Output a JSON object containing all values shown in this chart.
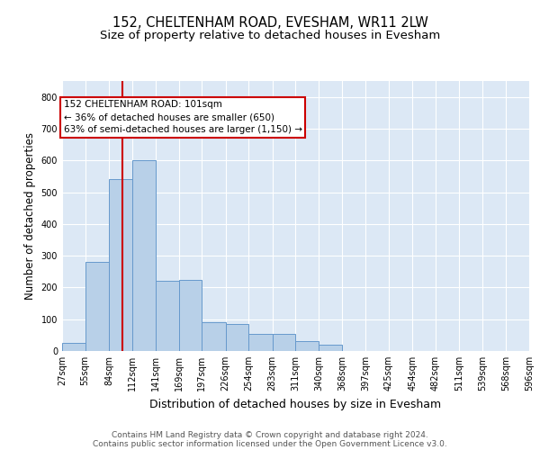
{
  "title": "152, CHELTENHAM ROAD, EVESHAM, WR11 2LW",
  "subtitle": "Size of property relative to detached houses in Evesham",
  "xlabel": "Distribution of detached houses by size in Evesham",
  "ylabel": "Number of detached properties",
  "footer_line1": "Contains HM Land Registry data © Crown copyright and database right 2024.",
  "footer_line2": "Contains public sector information licensed under the Open Government Licence v3.0.",
  "bar_color": "#b8d0e8",
  "bar_edge_color": "#6699cc",
  "background_color": "#dce8f5",
  "grid_color": "#ffffff",
  "vline_color": "#cc0000",
  "vline_x": 101,
  "annotation_text": "152 CHELTENHAM ROAD: 101sqm\n← 36% of detached houses are smaller (650)\n63% of semi-detached houses are larger (1,150) →",
  "ylim": [
    0,
    850
  ],
  "yticks": [
    0,
    100,
    200,
    300,
    400,
    500,
    600,
    700,
    800
  ],
  "bins": [
    27,
    55,
    84,
    112,
    141,
    169,
    197,
    226,
    254,
    283,
    311,
    340,
    368,
    397,
    425,
    454,
    482,
    511,
    539,
    568,
    596
  ],
  "counts": [
    25,
    280,
    540,
    600,
    220,
    225,
    90,
    85,
    55,
    55,
    30,
    20,
    0,
    0,
    0,
    0,
    0,
    0,
    0,
    0
  ],
  "title_fontsize": 10.5,
  "subtitle_fontsize": 9.5,
  "ylabel_fontsize": 8.5,
  "xlabel_fontsize": 9,
  "tick_fontsize": 7,
  "footer_fontsize": 6.5,
  "annot_fontsize": 7.5
}
